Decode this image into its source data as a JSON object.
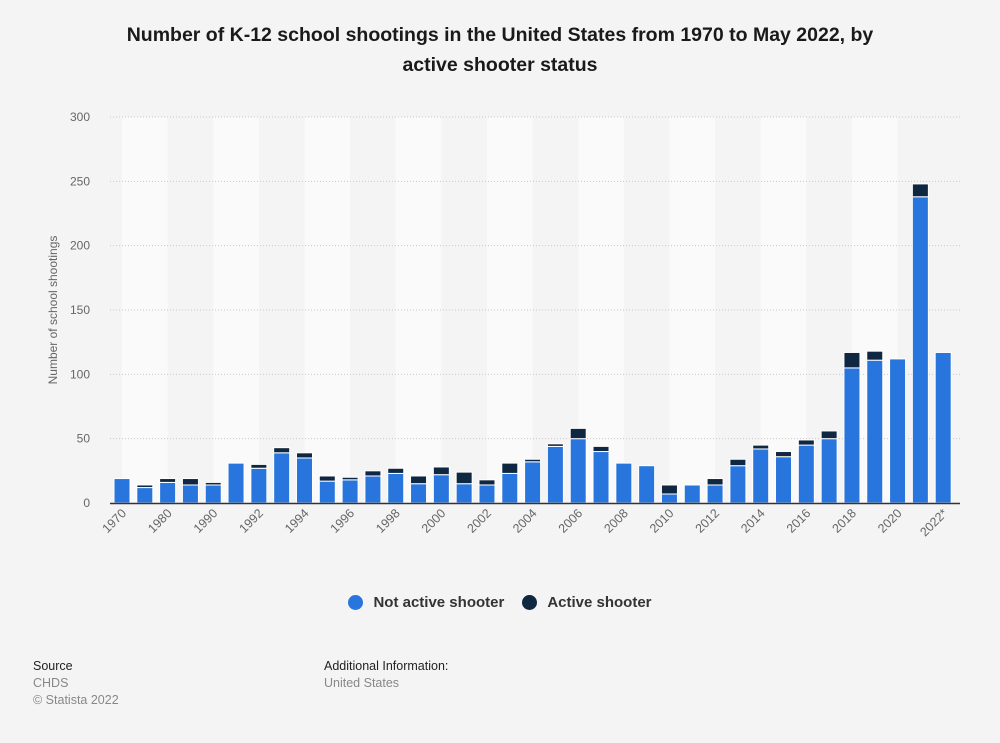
{
  "chart_data": {
    "type": "bar",
    "stacked": true,
    "title": "Number of K-12 school shootings in the United States from 1970 to May 2022, by active shooter status",
    "title_lines": [
      "Number of K-12 school shootings in the United States from 1970 to May 2022, by",
      "active shooter status"
    ],
    "xlabel": "",
    "ylabel": "Number of school shootings",
    "ylim": [
      0,
      300
    ],
    "yticks": [
      0,
      50,
      100,
      150,
      200,
      250,
      300
    ],
    "grid": true,
    "legend_position": "bottom",
    "categories": [
      "1970",
      "1975",
      "1980",
      "1985",
      "1990",
      "1991",
      "1992",
      "1993",
      "1994",
      "1995",
      "1996",
      "1997",
      "1998",
      "1999",
      "2000",
      "2001",
      "2002",
      "2003",
      "2004",
      "2005",
      "2006",
      "2007",
      "2008",
      "2009",
      "2010",
      "2011",
      "2012",
      "2013",
      "2014",
      "2015",
      "2016",
      "2017",
      "2018",
      "2019",
      "2020",
      "2021",
      "2022*"
    ],
    "x_tick_labels": [
      "1970",
      "1980",
      "1990",
      "1992",
      "1994",
      "1996",
      "1998",
      "2000",
      "2002",
      "2004",
      "2006",
      "2008",
      "2010",
      "2012",
      "2014",
      "2016",
      "2018",
      "2020",
      "2022*"
    ],
    "series": [
      {
        "name": "Not active shooter",
        "color": "#2876dd",
        "values": [
          19,
          12,
          16,
          14,
          14,
          31,
          27,
          39,
          35,
          17,
          18,
          21,
          23,
          15,
          22,
          15,
          14,
          23,
          32,
          44,
          50,
          40,
          31,
          29,
          7,
          14,
          14,
          29,
          42,
          36,
          45,
          50,
          105,
          111,
          112,
          238,
          117
        ]
      },
      {
        "name": "Active shooter",
        "color": "#0f2741",
        "values": [
          0,
          2,
          3,
          5,
          2,
          0,
          3,
          4,
          4,
          4,
          2,
          4,
          4,
          6,
          6,
          9,
          4,
          8,
          2,
          2,
          8,
          4,
          0,
          0,
          7,
          0,
          5,
          5,
          3,
          4,
          4,
          6,
          12,
          7,
          0,
          10,
          0
        ]
      }
    ]
  },
  "legend": {
    "items": [
      {
        "label": "Not active shooter",
        "color": "#2876dd"
      },
      {
        "label": "Active shooter",
        "color": "#0f2741"
      }
    ]
  },
  "footer": {
    "source_heading": "Source",
    "source_name": "CHDS",
    "copyright": "© Statista 2022",
    "additional_heading": "Additional Information:",
    "additional_value": "United States"
  }
}
